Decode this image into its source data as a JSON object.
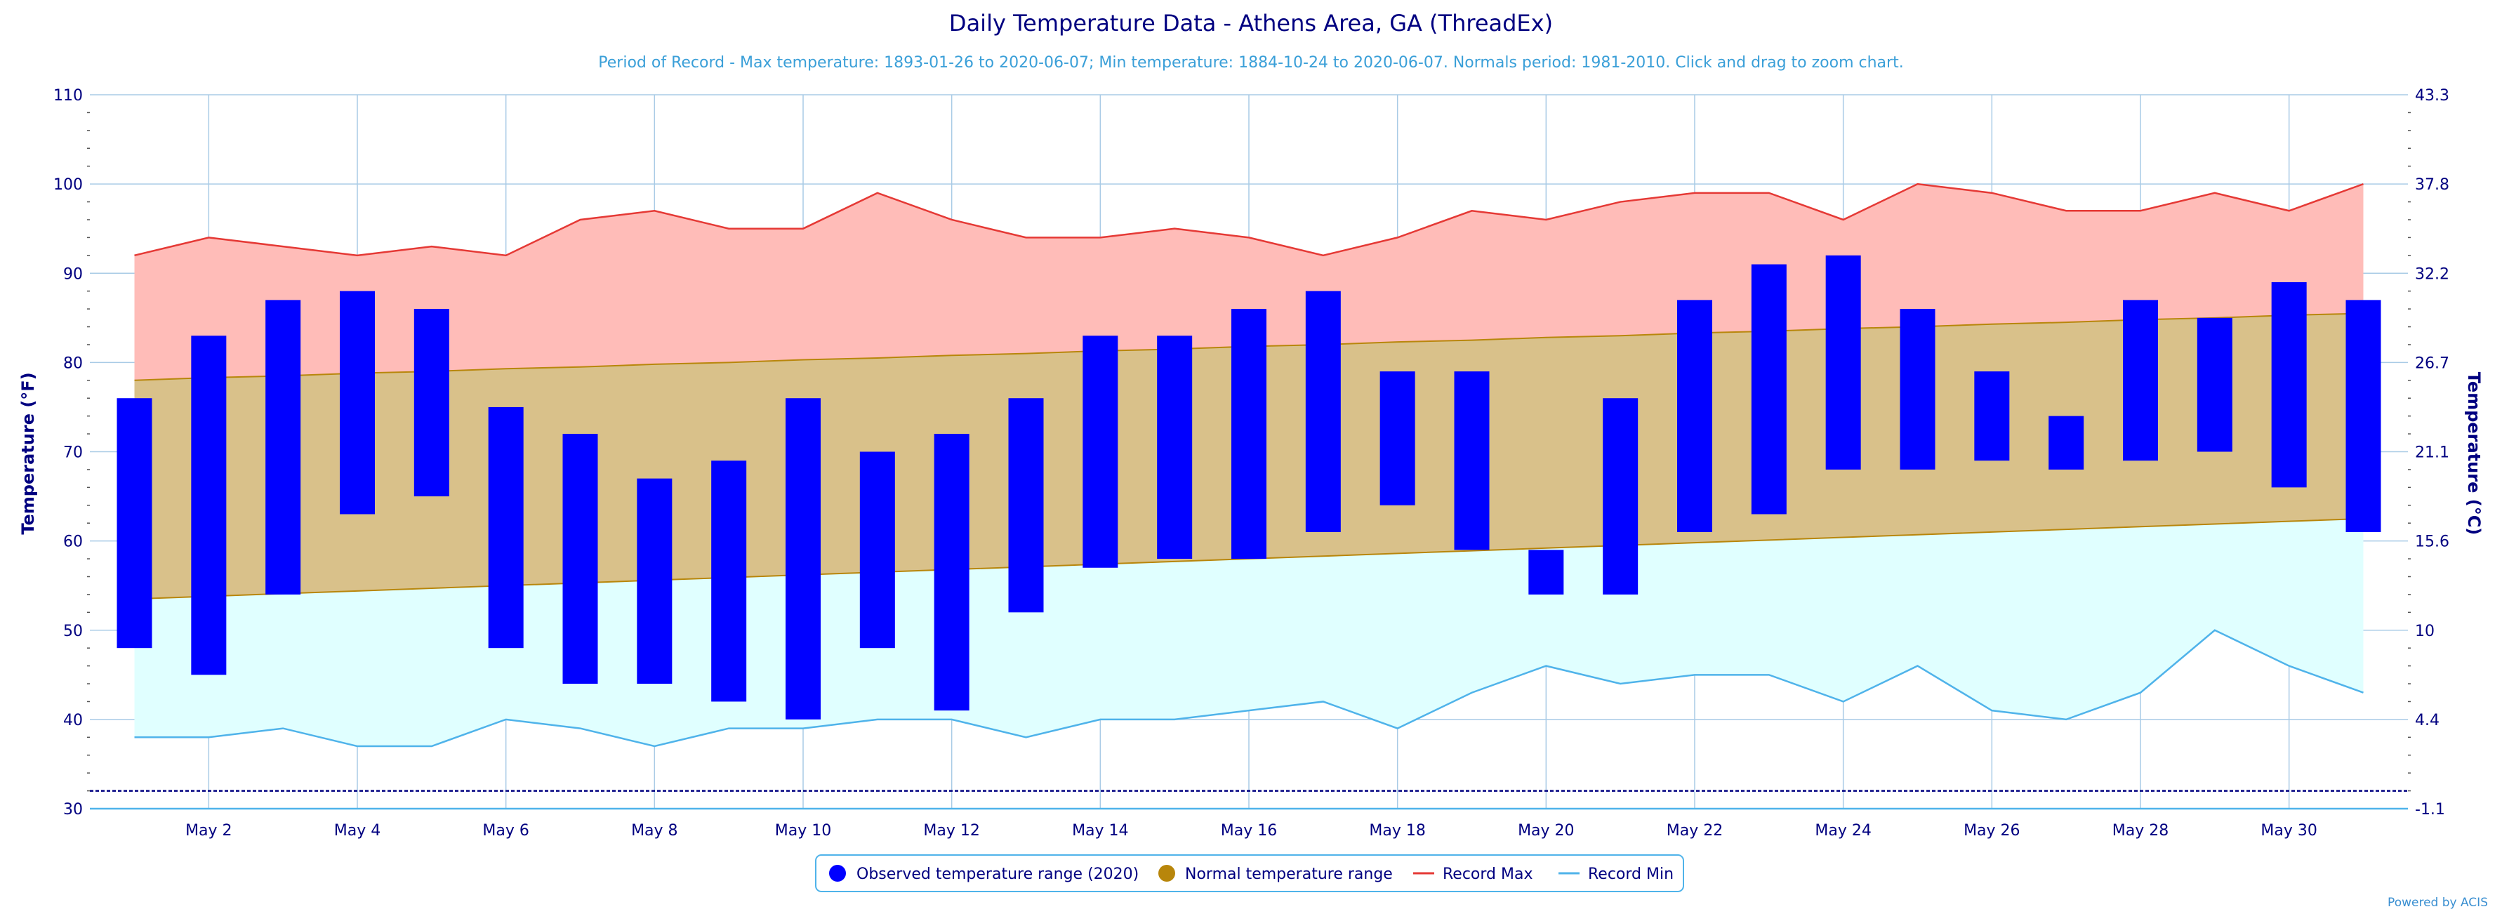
{
  "title": "Daily Temperature Data - Athens Area, GA (ThreadEx)",
  "subtitle": "Period of Record - Max temperature: 1893-01-26 to 2020-06-07; Min temperature: 1884-10-24 to 2020-06-07. Normals period: 1981-2010. Click and drag to zoom chart.",
  "credit": "Powered by ACIS",
  "colors": {
    "observed": "#0000ff",
    "normal": "#b8860b",
    "normal_fill": "#d9c18a",
    "record_max": "#e53935",
    "record_max_fill": "#ffbcb8",
    "record_min": "#4fb3ea",
    "record_min_fill": "#e0ffff",
    "axis_text": "#000080",
    "grid": "#a9cbe6",
    "zero_line": "#000080"
  },
  "legend": {
    "placement": "bottom-center",
    "items": [
      {
        "label": "Observed temperature range (2020)",
        "icon": "circle",
        "color": "#0000ff"
      },
      {
        "label": "Normal temperature range",
        "icon": "circle",
        "color": "#b8860b"
      },
      {
        "label": "Record Max",
        "icon": "line",
        "color": "#e53935"
      },
      {
        "label": "Record Min",
        "icon": "line",
        "color": "#4fb3ea"
      }
    ]
  },
  "chart_data": {
    "type": "bar",
    "title": "Daily Temperature Data - Athens Area, GA (ThreadEx)",
    "xlabel": "",
    "ylabel": "Temperature (°F)",
    "ylabel_right": "Temperature (°C)",
    "ylim": [
      30,
      110
    ],
    "yticks": [
      30,
      40,
      50,
      60,
      70,
      80,
      90,
      100,
      110
    ],
    "yticks_right": [
      "-1.1",
      "4.4",
      "10",
      "15.6",
      "21.1",
      "26.7",
      "32.2",
      "37.8",
      "43.3"
    ],
    "x": [
      1,
      2,
      3,
      4,
      5,
      6,
      7,
      8,
      9,
      10,
      11,
      12,
      13,
      14,
      15,
      16,
      17,
      18,
      19,
      20,
      21,
      22,
      23,
      24,
      25,
      26,
      27,
      28,
      29,
      30,
      31
    ],
    "xticks": [
      2,
      4,
      6,
      8,
      10,
      12,
      14,
      16,
      18,
      20,
      22,
      24,
      26,
      28,
      30
    ],
    "xtick_labels": [
      "May 2",
      "May 4",
      "May 6",
      "May 8",
      "May 10",
      "May 12",
      "May 14",
      "May 16",
      "May 18",
      "May 20",
      "May 22",
      "May 24",
      "May 26",
      "May 28",
      "May 30"
    ],
    "freezing_line": 32,
    "grid": true,
    "series": [
      {
        "name": "Observed temperature range (2020)",
        "low": [
          48,
          45,
          54,
          63,
          65,
          48,
          44,
          44,
          42,
          40,
          48,
          41,
          52,
          57,
          58,
          58,
          61,
          64,
          59,
          54,
          54,
          61,
          63,
          68,
          68,
          69,
          68,
          69,
          70,
          66,
          61
        ],
        "high": [
          76,
          83,
          87,
          88,
          86,
          75,
          72,
          67,
          69,
          76,
          70,
          72,
          76,
          83,
          83,
          86,
          88,
          79,
          79,
          59,
          76,
          87,
          91,
          92,
          86,
          79,
          74,
          87,
          85,
          89,
          87
        ]
      },
      {
        "name": "Normal temperature range",
        "low": [
          53.5,
          53.8,
          54.1,
          54.4,
          54.7,
          55.0,
          55.3,
          55.6,
          55.9,
          56.2,
          56.5,
          56.8,
          57.1,
          57.4,
          57.7,
          58.0,
          58.3,
          58.6,
          58.9,
          59.2,
          59.5,
          59.8,
          60.1,
          60.4,
          60.7,
          61.0,
          61.3,
          61.6,
          61.9,
          62.2,
          62.5
        ],
        "high": [
          78.0,
          78.3,
          78.5,
          78.8,
          79.0,
          79.3,
          79.5,
          79.8,
          80.0,
          80.3,
          80.5,
          80.8,
          81.0,
          81.3,
          81.5,
          81.8,
          82.0,
          82.3,
          82.5,
          82.8,
          83.0,
          83.3,
          83.5,
          83.8,
          84.0,
          84.3,
          84.5,
          84.8,
          85.0,
          85.3,
          85.5
        ]
      },
      {
        "name": "Record Max",
        "values": [
          92,
          94,
          93,
          92,
          93,
          92,
          96,
          97,
          95,
          95,
          99,
          96,
          94,
          94,
          95,
          94,
          92,
          94,
          97,
          96,
          98,
          99,
          99,
          96,
          100,
          99,
          97,
          97,
          99,
          97,
          100
        ]
      },
      {
        "name": "Record Min",
        "values": [
          38,
          38,
          39,
          37,
          37,
          40,
          39,
          37,
          39,
          39,
          40,
          40,
          38,
          40,
          40,
          41,
          42,
          39,
          43,
          46,
          44,
          45,
          45,
          42,
          46,
          41,
          40,
          43,
          50,
          46,
          43
        ]
      }
    ]
  }
}
